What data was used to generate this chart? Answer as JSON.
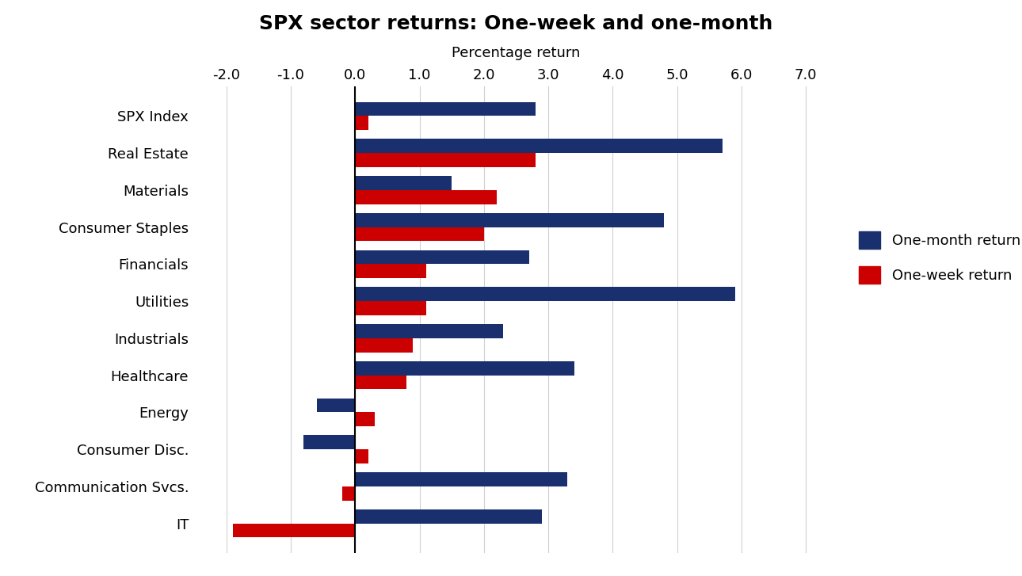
{
  "title": "SPX sector returns: One-week and one-month",
  "xlabel": "Percentage return",
  "categories": [
    "SPX Index",
    "Real Estate",
    "Materials",
    "Consumer Staples",
    "Financials",
    "Utilities",
    "Industrials",
    "Healthcare",
    "Energy",
    "Consumer Disc.",
    "Communication Svcs.",
    "IT"
  ],
  "one_month": [
    2.8,
    5.7,
    1.5,
    4.8,
    2.7,
    5.9,
    2.3,
    3.4,
    -0.6,
    -0.8,
    3.3,
    2.9
  ],
  "one_week": [
    0.2,
    2.8,
    2.2,
    2.0,
    1.1,
    1.1,
    0.9,
    0.8,
    0.3,
    0.2,
    -0.2,
    -1.9
  ],
  "bar_color_month": "#1a2f6e",
  "bar_color_week": "#cc0000",
  "xlim": [
    -2.5,
    7.5
  ],
  "xticks": [
    -2.0,
    -1.0,
    0.0,
    1.0,
    2.0,
    3.0,
    4.0,
    5.0,
    6.0,
    7.0
  ],
  "background_color": "#ffffff",
  "legend_month": "One-month return",
  "legend_week": "One-week return",
  "title_fontsize": 18,
  "axis_label_fontsize": 13,
  "tick_fontsize": 13
}
